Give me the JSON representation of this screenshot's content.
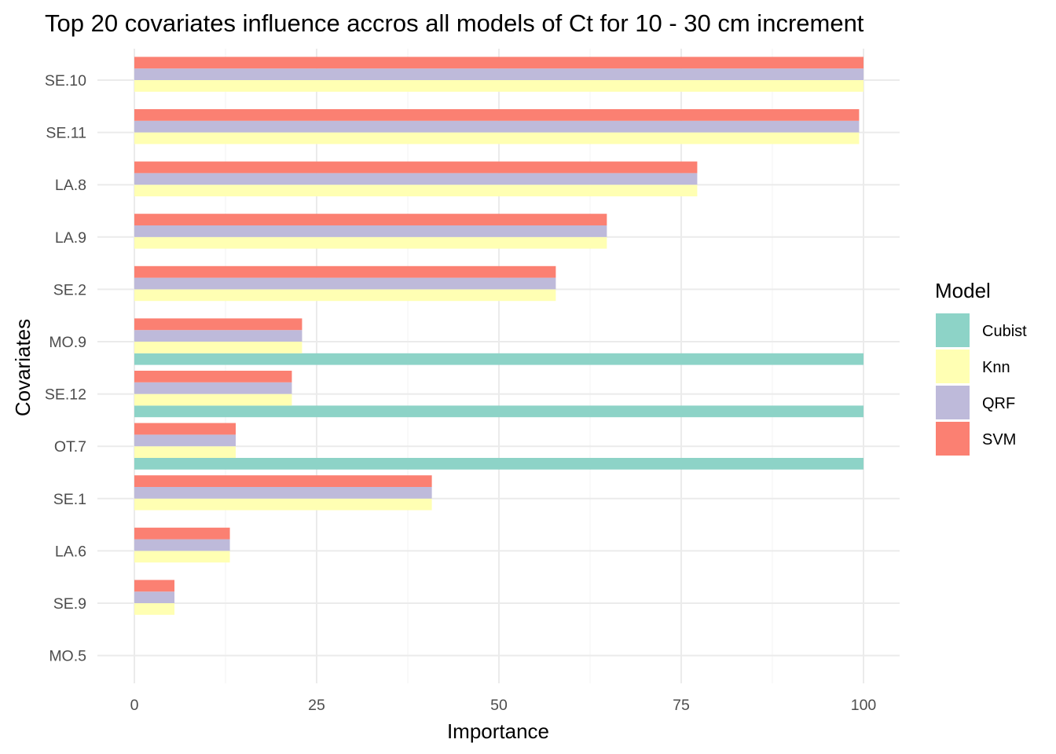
{
  "chart_data": {
    "type": "bar",
    "orientation": "horizontal",
    "title": "Top 20 covariates influence accros all models of Ct for 10 - 30 cm increment",
    "xlabel": "Importance",
    "ylabel": "Covariates",
    "xlim": [
      0,
      100
    ],
    "xticks": [
      "0",
      "25",
      "50",
      "75",
      "100"
    ],
    "grid": true,
    "legend": {
      "title": "Model",
      "position": "right"
    },
    "categories": [
      "SE.10",
      "SE.11",
      "LA.8",
      "LA.9",
      "SE.2",
      "MO.9",
      "SE.12",
      "OT.7",
      "SE.1",
      "LA.6",
      "SE.9",
      "MO.5"
    ],
    "series": [
      {
        "name": "Cubist",
        "color": "#8dd3c7",
        "values": [
          null,
          null,
          null,
          null,
          null,
          100,
          100,
          100,
          null,
          null,
          null,
          null
        ]
      },
      {
        "name": "Knn",
        "color": "#ffffb3",
        "values": [
          100,
          99.4,
          77.2,
          64.8,
          57.8,
          23.0,
          21.6,
          13.9,
          40.8,
          13.1,
          5.5,
          null
        ]
      },
      {
        "name": "QRF",
        "color": "#bebada",
        "values": [
          100,
          99.4,
          77.2,
          64.8,
          57.8,
          23.0,
          21.6,
          13.9,
          40.8,
          13.1,
          5.5,
          null
        ]
      },
      {
        "name": "SVM",
        "color": "#fb8072",
        "values": [
          100,
          99.4,
          77.2,
          64.8,
          57.8,
          23.0,
          21.6,
          13.9,
          40.8,
          13.1,
          5.5,
          null
        ]
      }
    ]
  }
}
